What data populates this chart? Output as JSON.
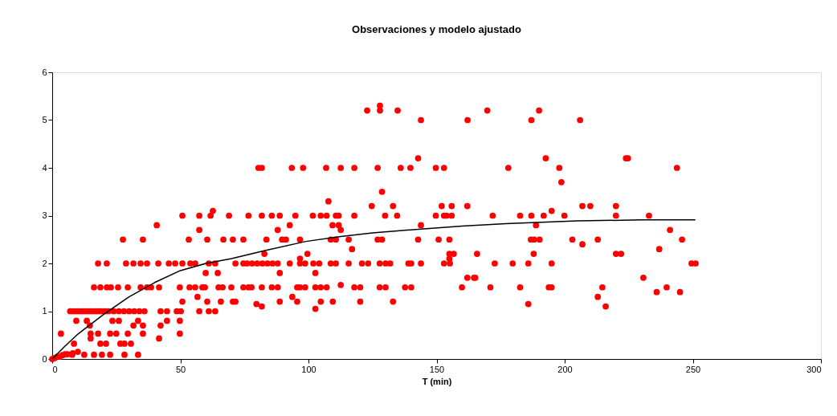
{
  "chart_data": {
    "type": "scatter",
    "title": "Observaciones y modelo ajustado",
    "xlabel": "T (min)",
    "xlim": [
      0,
      300
    ],
    "xticks": [
      0,
      50,
      100,
      150,
      200,
      250,
      300
    ],
    "ylim": [
      0,
      6
    ],
    "yticks": [
      0,
      1,
      2,
      3,
      4,
      5,
      6
    ],
    "grid": false,
    "series": [
      {
        "type": "scatter",
        "marker": "circle",
        "color": "#ff0000",
        "x": [
          0,
          1,
          2,
          3,
          4,
          5,
          6,
          8,
          10,
          7.8,
          12.5,
          16.3,
          19.4,
          22.6,
          28.2,
          33.5,
          8.5,
          18.8,
          21,
          26.6,
          28.2,
          30.7,
          3.4,
          15,
          17.9,
          22.6,
          25,
          29.5,
          35.4,
          49.8,
          15,
          41.7,
          14.7,
          31.7,
          35.4,
          42.3,
          9.4,
          13.5,
          23.5,
          26,
          33.5,
          44.8,
          49.8,
          7,
          8,
          9,
          10,
          11,
          12,
          13,
          14,
          15,
          16,
          17,
          18,
          19,
          20,
          21,
          22,
          24,
          26,
          28,
          30,
          32,
          34,
          36,
          42.3,
          44.8,
          48.6,
          50.2,
          57.4,
          61.1,
          63.6,
          50.8,
          60.5,
          65.8,
          70.5,
          71.5,
          56.7,
          16.3,
          18.8,
          21.3,
          22.9,
          25.7,
          29.5,
          34.5,
          37,
          38.6,
          41.7,
          49.8,
          53.6,
          55.8,
          58.6,
          59.6,
          64.9,
          66.5,
          69.9,
          74.6,
          59.9,
          64.6,
          17.9,
          21.3,
          28.8,
          31.7,
          34.5,
          37,
          41.4,
          45.5,
          48,
          50.8,
          53.9,
          55.8,
          61.1,
          63.6,
          71.5,
          74.6,
          27.6,
          35.4,
          53.3,
          60.5,
          66.8,
          70.5,
          74.6,
          57.4,
          40.8,
          50.8,
          57.4,
          61.8,
          69,
          62.7,
          122.9,
          127.9,
          134.8,
          127.9,
          143.9,
          162.1,
          142.8,
          80.5,
          81.8,
          93.5,
          97.9,
          106.9,
          112.6,
          117.9,
          127,
          136,
          139.8,
          149.7,
          152.9,
          128.7,
          107.8,
          124.7,
          133,
          152,
          155.9,
          162,
          76.6,
          81.8,
          85.7,
          88.8,
          94.9,
          101.7,
          104.8,
          107.1,
          110.7,
          111.8,
          117.9,
          129.9,
          134.6,
          149.7,
          152.9,
          153.9,
          155.9,
          92.7,
          109.4,
          111.8,
          143.9,
          88,
          112.6,
          83.6,
          89.7,
          91.2,
          96.7,
          108.7,
          110.7,
          115.7,
          127,
          128.7,
          142.8,
          150.8,
          155,
          117,
          82.8,
          99.6,
          155,
          156.7,
          96.7,
          155,
          76,
          78,
          80,
          82,
          84,
          86,
          88,
          92.7,
          96.7,
          98.7,
          101.9,
          104.2,
          108.7,
          110.7,
          115.7,
          120.9,
          123.3,
          127.8,
          130.1,
          131.9,
          139,
          140.1,
          143.9,
          152.9,
          155.2,
          88.8,
          102.7,
          162,
          164.6,
          112.6,
          76.6,
          77.8,
          81.8,
          85.7,
          88,
          95.6,
          96.7,
          98.7,
          102.7,
          104.8,
          107.1,
          117.9,
          120.2,
          127.8,
          130.1,
          137.7,
          140.1,
          159.9,
          93.7,
          88.8,
          95.6,
          104.8,
          109.5,
          120.2,
          133,
          79.7,
          81.8,
          102.7,
          169.8,
          190,
          187,
          206,
          192.6,
          223.9,
          224.7,
          178,
          197.9,
          243.8,
          198.7,
          206.9,
          210,
          220,
          194.9,
          171.9,
          182.6,
          187,
          191.8,
          199.9,
          220,
          232.9,
          188.8,
          241.1,
          186.8,
          188.1,
          190.2,
          203,
          212.9,
          245.8,
          206.9,
          236.9,
          165.8,
          187.9,
          220,
          222,
          172.7,
          179.7,
          185.8,
          194.9,
          249.5,
          251.1,
          165.1,
          230.7,
          171,
          182.6,
          193.8,
          194.9,
          214.7,
          239.8,
          235.9,
          245,
          212.9,
          185.8,
          216
        ],
        "values": [
          0,
          0.02,
          0.05,
          0.05,
          0.08,
          0.1,
          0.1,
          0.12,
          0.15,
          0.09,
          0.09,
          0.09,
          0.09,
          0.09,
          0.09,
          0.09,
          0.32,
          0.32,
          0.32,
          0.32,
          0.32,
          0.32,
          0.53,
          0.53,
          0.53,
          0.53,
          0.53,
          0.53,
          0.53,
          0.53,
          0.43,
          0.43,
          0.7,
          0.7,
          0.7,
          0.7,
          0.8,
          0.8,
          0.8,
          0.8,
          0.8,
          0.8,
          0.8,
          1,
          1,
          1,
          1,
          1,
          1,
          1,
          1,
          1,
          1,
          1,
          1,
          1,
          1,
          1,
          1,
          1,
          1,
          1,
          1,
          1,
          1,
          1,
          1,
          1,
          1,
          1,
          1,
          1,
          1,
          1.2,
          1.2,
          1.2,
          1.2,
          1.2,
          1.3,
          1.5,
          1.5,
          1.5,
          1.5,
          1.5,
          1.5,
          1.5,
          1.5,
          1.5,
          1.5,
          1.5,
          1.5,
          1.5,
          1.5,
          1.5,
          1.5,
          1.5,
          1.5,
          1.5,
          1.8,
          1.8,
          2,
          2,
          2,
          2,
          2,
          2,
          2,
          2,
          2,
          2,
          2,
          2,
          2,
          2,
          2,
          2,
          2.5,
          2.5,
          2.5,
          2.5,
          2.5,
          2.5,
          2.5,
          2.7,
          2.8,
          3,
          3,
          3,
          3,
          3.1,
          5.2,
          5.2,
          5.2,
          5.3,
          5,
          5,
          4.2,
          4,
          4,
          4,
          4,
          4,
          4,
          4,
          4,
          4,
          4,
          4,
          4,
          3.5,
          3.3,
          3.2,
          3.2,
          3.2,
          3.2,
          3.2,
          3,
          3,
          3,
          3,
          3,
          3,
          3,
          3,
          3,
          3,
          3,
          3,
          3,
          3,
          3,
          3,
          3,
          2.8,
          2.8,
          2.8,
          2.8,
          2.7,
          2.7,
          2.5,
          2.5,
          2.5,
          2.5,
          2.5,
          2.5,
          2.5,
          2.5,
          2.5,
          2.5,
          2.5,
          2.5,
          2.3,
          2.2,
          2.2,
          2.2,
          2.2,
          2.1,
          2.1,
          2,
          2,
          2,
          2,
          2,
          2,
          2,
          2,
          2,
          2,
          2,
          2,
          2,
          2,
          2,
          2,
          2,
          2,
          2,
          2,
          2,
          2,
          2,
          2,
          2,
          1.8,
          1.8,
          1.7,
          1.7,
          1.55,
          1.5,
          1.5,
          1.5,
          1.5,
          1.5,
          1.5,
          1.5,
          1.5,
          1.5,
          1.5,
          1.5,
          1.5,
          1.5,
          1.5,
          1.5,
          1.5,
          1.5,
          1.5,
          1.3,
          1.2,
          1.2,
          1.2,
          1.2,
          1.2,
          1.2,
          1.15,
          1.1,
          1.05,
          5.2,
          5.2,
          5,
          5,
          4.2,
          4.2,
          4.2,
          4,
          4,
          4,
          3.7,
          3.2,
          3.2,
          3.2,
          3.1,
          3,
          3,
          3,
          3,
          3,
          3,
          3,
          2.8,
          2.7,
          2.5,
          2.5,
          2.5,
          2.5,
          2.5,
          2.5,
          2.4,
          2.3,
          2.2,
          2.2,
          2.2,
          2.2,
          2,
          2,
          2,
          2,
          2,
          2,
          1.7,
          1.7,
          1.5,
          1.5,
          1.5,
          1.5,
          1.5,
          1.5,
          1.4,
          1.4,
          1.3,
          1.15,
          1.1
        ]
      },
      {
        "type": "line",
        "line_style": "solid",
        "color": "#000000",
        "x": [
          0,
          5,
          10,
          20,
          30,
          40,
          50,
          60,
          70,
          83,
          99,
          112,
          125,
          144,
          160,
          177,
          205,
          230,
          251
        ],
        "values": [
          0,
          0.27,
          0.52,
          0.93,
          1.3,
          1.6,
          1.85,
          2,
          2.1,
          2.27,
          2.46,
          2.56,
          2.64,
          2.72,
          2.78,
          2.83,
          2.89,
          2.91,
          2.91
        ]
      }
    ]
  }
}
